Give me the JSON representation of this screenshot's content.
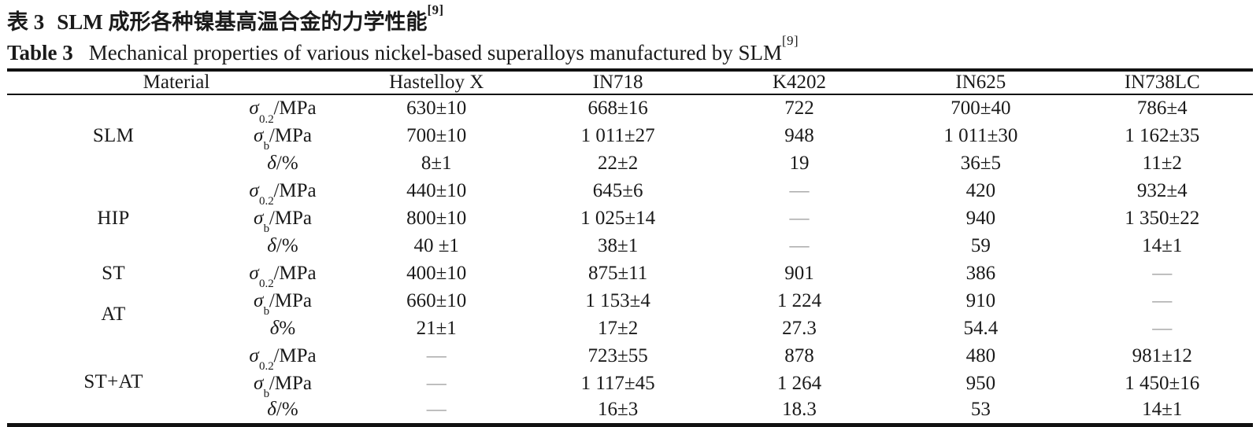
{
  "page": {
    "title_zh": {
      "label": "表 3",
      "text": "SLM 成形各种镍基高温合金的力学性能",
      "ref": "[9]"
    },
    "title_en": {
      "label": "Table 3",
      "text": "Mechanical properties of various nickel-based superalloys manufactured by SLM",
      "ref": "[9]"
    }
  },
  "table": {
    "header": {
      "material": "Material",
      "alloys": [
        "Hastelloy X",
        "IN718",
        "K4202",
        "IN625",
        "IN738LC"
      ]
    },
    "groups": [
      {
        "material": "SLM",
        "rows": [
          {
            "prop_symbol": "σ",
            "prop_sub": "0.2",
            "prop_rest": "/MPa",
            "values": [
              "630±10",
              "668±16",
              "722",
              "700±40",
              "786±4"
            ]
          },
          {
            "prop_symbol": "σ",
            "prop_sub": "b",
            "prop_rest": "/MPa",
            "values": [
              "700±10",
              "1 011±27",
              "948",
              "1 011±30",
              "1 162±35"
            ]
          },
          {
            "prop_symbol": "δ",
            "prop_sub": "",
            "prop_rest": "/%",
            "values": [
              "8±1",
              "22±2",
              "19",
              "36±5",
              "11±2"
            ]
          }
        ]
      },
      {
        "material": "HIP",
        "rows": [
          {
            "prop_symbol": "σ",
            "prop_sub": "0.2",
            "prop_rest": "/MPa",
            "values": [
              "440±10",
              "645±6",
              "—",
              "420",
              "932±4"
            ]
          },
          {
            "prop_symbol": "σ",
            "prop_sub": "b",
            "prop_rest": "/MPa",
            "values": [
              "800±10",
              "1 025±14",
              "—",
              "940",
              "1 350±22"
            ]
          },
          {
            "prop_symbol": "δ",
            "prop_sub": "",
            "prop_rest": "/%",
            "values": [
              "40 ±1",
              "38±1",
              "—",
              "59",
              "14±1"
            ]
          }
        ]
      },
      {
        "material": "ST",
        "rows": [
          {
            "prop_symbol": "σ",
            "prop_sub": "0.2",
            "prop_rest": "/MPa",
            "values": [
              "400±10",
              "875±11",
              "901",
              "386",
              "—"
            ]
          }
        ]
      },
      {
        "material": "AT",
        "rows": [
          {
            "prop_symbol": "σ",
            "prop_sub": "b",
            "prop_rest": "/MPa",
            "values": [
              "660±10",
              "1 153±4",
              "1 224",
              "910",
              "—"
            ]
          },
          {
            "prop_symbol": "δ",
            "prop_sub": "",
            "prop_rest": "%",
            "values": [
              "21±1",
              "17±2",
              "27.3",
              "54.4",
              "—"
            ]
          }
        ]
      },
      {
        "material": "ST+AT",
        "rows": [
          {
            "prop_symbol": "σ",
            "prop_sub": "0.2",
            "prop_rest": "/MPa",
            "values": [
              "—",
              "723±55",
              "878",
              "480",
              "981±12"
            ]
          },
          {
            "prop_symbol": "σ",
            "prop_sub": "b",
            "prop_rest": "/MPa",
            "values": [
              "—",
              "1 117±45",
              "1 264",
              "950",
              "1 450±16"
            ]
          },
          {
            "prop_symbol": "δ",
            "prop_sub": "",
            "prop_rest": "/%",
            "values": [
              "—",
              "16±3",
              "18.3",
              "53",
              "14±1"
            ]
          }
        ]
      }
    ]
  },
  "colors": {
    "text": "#1a1a1a",
    "rule": "#111111",
    "dash": "#9a9a9a",
    "background": "#ffffff"
  }
}
